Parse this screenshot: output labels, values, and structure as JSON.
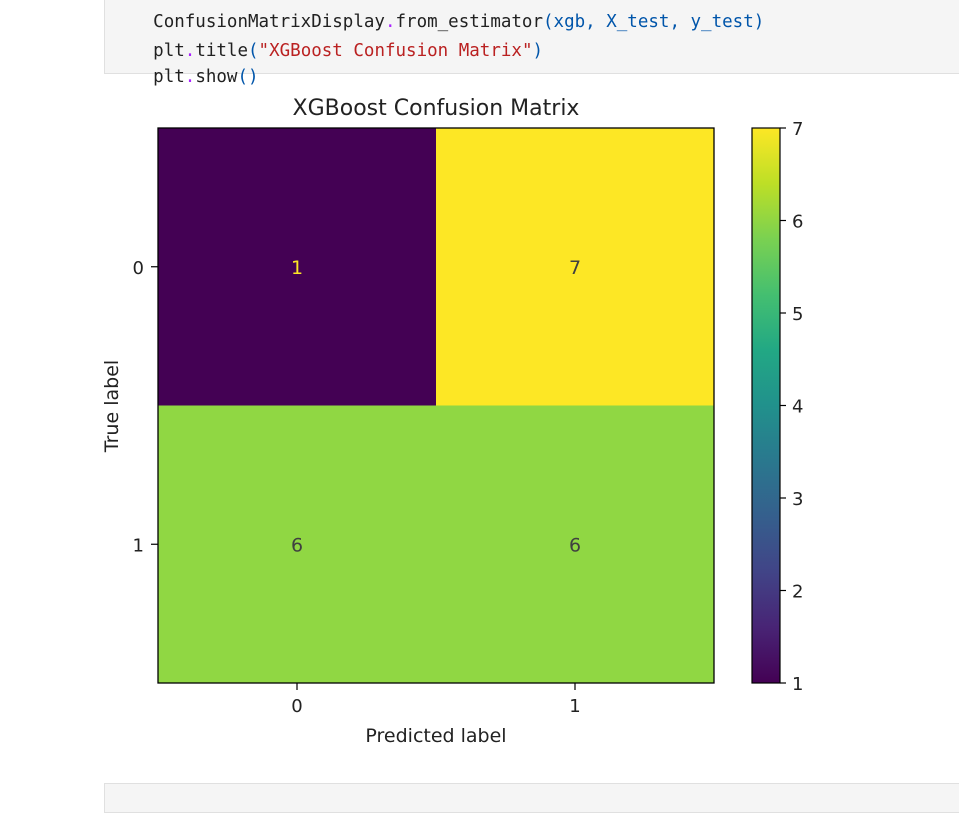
{
  "code_cell": {
    "lines": [
      {
        "obj": "ConfusionMatrixDisplay",
        "op": ".",
        "fn": "from_estimator",
        "args": "(xgb, X_test, y_test)"
      },
      {
        "obj": "plt",
        "op": ".",
        "fn": "title",
        "lp": "(",
        "str": "\"XGBoost Confusion Matrix\"",
        "rp": ")"
      },
      {
        "obj": "plt",
        "op": ".",
        "fn": "show",
        "lp": "(",
        "rp": ")"
      }
    ]
  },
  "chart_data": {
    "type": "heatmap",
    "title": "XGBoost Confusion Matrix",
    "xlabel": "Predicted label",
    "ylabel": "True label",
    "x_categories": [
      "0",
      "1"
    ],
    "y_categories": [
      "0",
      "1"
    ],
    "matrix": [
      [
        1,
        7
      ],
      [
        6,
        6
      ]
    ],
    "colormap": "viridis",
    "colorbar": {
      "range": [
        1,
        7
      ],
      "ticks": [
        "1",
        "2",
        "3",
        "4",
        "5",
        "6",
        "7"
      ]
    },
    "cell_colors": {
      "1": "#440154",
      "6": "#90d743",
      "7": "#fde725"
    },
    "text_colors": {
      "dark_cell": "#fde725",
      "light_cell": "#404040"
    }
  }
}
